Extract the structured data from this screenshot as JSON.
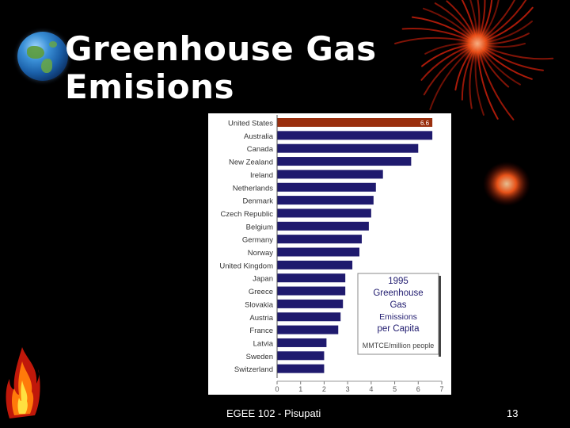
{
  "slide": {
    "title_line1": "Greenhouse Gas",
    "title_line2": "Emisions",
    "footer_course": "EGEE 102 - Pisupati",
    "page_number": "13"
  },
  "colors": {
    "background": "#000000",
    "bar": "#1f1a6e",
    "highlight_bar": "#9a2f0e",
    "chart_bg": "#ffffff"
  },
  "icons": [
    "globe-icon",
    "fireworks-decoration",
    "flame-icon"
  ],
  "chart_data": {
    "type": "bar",
    "orientation": "horizontal",
    "categories": [
      "United States",
      "Australia",
      "Canada",
      "New Zealand",
      "Ireland",
      "Netherlands",
      "Denmark",
      "Czech Republic",
      "Belgium",
      "Germany",
      "Norway",
      "United Kingdom",
      "Japan",
      "Greece",
      "Slovakia",
      "Austria",
      "France",
      "Latvia",
      "Sweden",
      "Switzerland"
    ],
    "values": [
      6.6,
      6.6,
      6.0,
      5.7,
      4.5,
      4.2,
      4.1,
      4.0,
      3.9,
      3.6,
      3.5,
      3.2,
      2.9,
      2.9,
      2.8,
      2.7,
      2.6,
      2.1,
      2.0,
      2.0
    ],
    "highlight_index": 0,
    "data_label": "6.6",
    "legend_lines": [
      "1995",
      "Greenhouse",
      "Gas",
      "Emissions",
      "per Capita"
    ],
    "unit_label": "MMTCE/million people",
    "xlim": [
      0,
      7
    ],
    "xticks": [
      "0",
      "1",
      "2",
      "3",
      "4",
      "5",
      "6",
      "7"
    ],
    "grid": false
  }
}
